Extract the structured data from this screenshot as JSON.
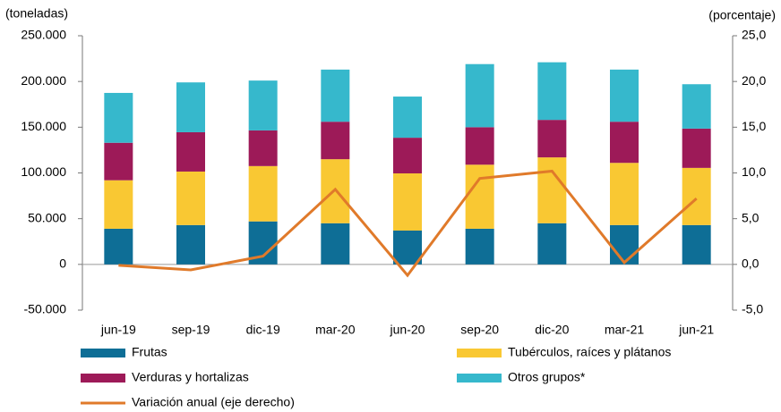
{
  "chart_data": {
    "type": "bar",
    "stacked": true,
    "y_axis_label": "(toneladas)",
    "y2_axis_label": "(porcentaje)",
    "categories": [
      "jun-19",
      "sep-19",
      "dic-19",
      "mar-20",
      "jun-20",
      "sep-20",
      "dic-20",
      "mar-21",
      "jun-21"
    ],
    "series": [
      {
        "name": "Frutas",
        "color": "#0e6e96",
        "values": [
          39000,
          43000,
          47000,
          45000,
          37000,
          39000,
          45000,
          43000,
          43000
        ]
      },
      {
        "name": "Tubérculos, raíces y plátanos",
        "color": "#f9c833",
        "values": [
          53000,
          58500,
          60500,
          70000,
          62500,
          70000,
          72000,
          68000,
          62500
        ]
      },
      {
        "name": "Verduras y hortalizas",
        "color": "#9d1a58",
        "values": [
          41000,
          43000,
          39000,
          41000,
          39000,
          41000,
          41000,
          45000,
          43000
        ]
      },
      {
        "name": "Otros grupos*",
        "color": "#36b8cc",
        "values": [
          54500,
          54500,
          54500,
          57000,
          45000,
          69000,
          63000,
          57000,
          48500
        ]
      },
      {
        "name": "Variación anual (eje derecho)",
        "color": "#e07a2a",
        "type": "line",
        "axis": "y2",
        "values": [
          -0.1,
          -0.6,
          0.9,
          8.2,
          -1.2,
          9.4,
          10.2,
          0.2,
          7.2
        ]
      }
    ],
    "ylim": [
      -50000,
      250000
    ],
    "yticks": [
      {
        "value": -50000,
        "label": "-50.000"
      },
      0,
      {
        "value": 50000,
        "label": "50.000"
      },
      {
        "value": 100000,
        "label": "100.000"
      },
      {
        "value": 150000,
        "label": "150.000"
      },
      {
        "value": 200000,
        "label": "200.000"
      },
      {
        "value": 250000,
        "label": "250.000"
      }
    ],
    "y2lim": [
      -5,
      25
    ],
    "y2ticks": [
      {
        "value": -5,
        "label": "-5,0"
      },
      {
        "value": 0,
        "label": "0,0"
      },
      {
        "value": 5,
        "label": "5,0"
      },
      {
        "value": 10,
        "label": "10,0"
      },
      {
        "value": 15,
        "label": "15,0"
      },
      {
        "value": 20,
        "label": "20,0"
      },
      {
        "value": 25,
        "label": "25,0"
      }
    ],
    "grid": false
  }
}
